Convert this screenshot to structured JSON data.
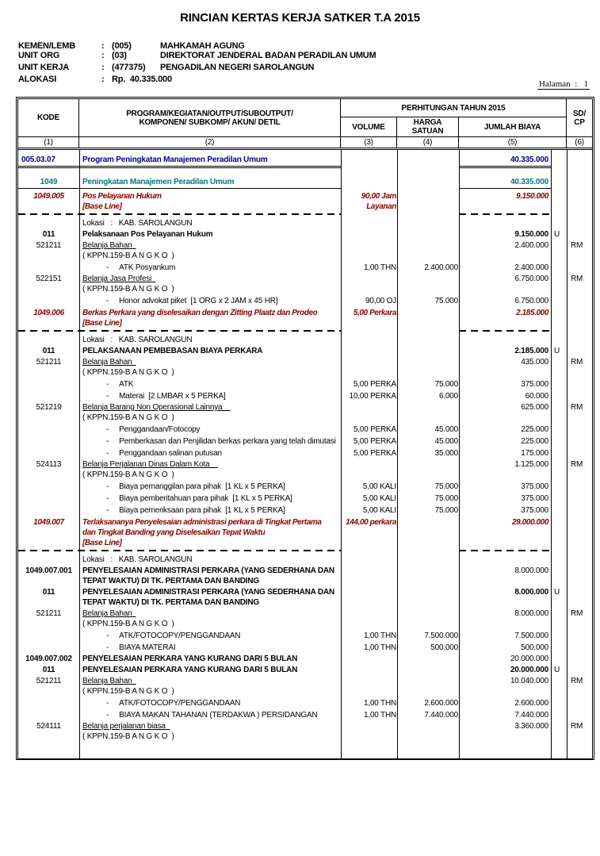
{
  "title": "RINCIAN KERTAS KERJA SATKER T.A 2015",
  "page_label": "Halaman  :   1",
  "colors": {
    "program_navy": "#00008B",
    "kegiatan_teal": "#007A7A",
    "baseline_red": "#8B0000"
  },
  "meta": {
    "rows": [
      {
        "label": "KEMEN/LEMB",
        "sep": ":",
        "code": "(005)",
        "name": "MAHKAMAH AGUNG"
      },
      {
        "label": "UNIT ORG",
        "sep": ":",
        "code": "(03)",
        "name": "DIREKTORAT JENDERAL BADAN PERADILAN UMUM"
      },
      {
        "label": "UNIT KERJA",
        "sep": ":",
        "code": "(477375)",
        "name": "PENGADILAN NEGERI SAROLANGUN"
      },
      {
        "label": "ALOKASI",
        "sep": ":",
        "code": "Rp.  40.335.000",
        "name": ""
      }
    ]
  },
  "table": {
    "detail_bullet": "-",
    "header": {
      "kode": "KODE",
      "program_line1": "PROGRAM/KEGIATAN/OUTPUT/SUBOUTPUT/",
      "program_line2": "KOMPONEN/ SUBKOMP/ AKUN/ DETIL",
      "perhitungan": "PERHITUNGAN TAHUN 2015",
      "volume": "VOLUME",
      "harga": "HARGA SATUAN",
      "jumlah": "JUMLAH BIAYA",
      "sdcp_line1": "SD/",
      "sdcp_line2": "CP",
      "nums": [
        "(1)",
        "(2)",
        "(3)",
        "(4)",
        "(5)",
        "(6)"
      ]
    },
    "rows": [
      {
        "t": "prog",
        "k": "005.03.07",
        "d": [
          "Program Peningkatan Manajemen Peradilan Umum"
        ],
        "j": "40.335.000"
      },
      {
        "t": "rule-double"
      },
      {
        "t": "keg",
        "k": "1049",
        "d": [
          "Peningkatan Manajemen Peradilan Umum"
        ],
        "j": "40.335.000"
      },
      {
        "t": "rule-single"
      },
      {
        "t": "out",
        "k": "1049.005",
        "d": [
          "Pos Pelayanan Hukum",
          "[Base Line]"
        ],
        "v": [
          "90,00 Jam",
          "Layanan"
        ],
        "j": "9.150.000"
      },
      {
        "t": "rule-dashed"
      },
      {
        "t": "lok",
        "d": [
          "Lokasi   :   KAB. SAROLANGUN"
        ]
      },
      {
        "t": "kom",
        "k": "011",
        "d": [
          "Pelaksanaan Pos Pelayanan Hukum"
        ],
        "j": "9.150.000",
        "u": "U"
      },
      {
        "t": "akun",
        "k": "521211",
        "d": [
          "Belanja Bahan  "
        ],
        "kppn": "( KPPN.159-B A N G K O  )",
        "j": "2.400.000",
        "s": "RM"
      },
      {
        "t": "det",
        "d": [
          "ATK Posyankum"
        ],
        "v": [
          "1,00 THN"
        ],
        "h": "2.400.000",
        "j": "2.400.000"
      },
      {
        "t": "akun",
        "k": "522151",
        "d": [
          "Belanja Jasa Profesi  "
        ],
        "kppn": "( KPPN.159-B A N G K O  )",
        "j": "6.750.000",
        "s": "RM"
      },
      {
        "t": "det",
        "d": [
          "Honor advokat piket  [1 ORG x 2 JAM x 45 HR]"
        ],
        "v": [
          "90,00 OJ"
        ],
        "h": "75.000",
        "j": "6.750.000"
      },
      {
        "t": "out",
        "k": "1049.006",
        "d": [
          "Berkas Perkara yang diselesaikan dengan Zitting Plaatz dan Prodeo",
          "[Base Line]"
        ],
        "v": [
          "5,00 Perkara"
        ],
        "j": "2.185.000"
      },
      {
        "t": "rule-dashed"
      },
      {
        "t": "lok",
        "d": [
          "Lokasi   :   KAB. SAROLANGUN"
        ]
      },
      {
        "t": "kom",
        "k": "011",
        "d": [
          "PELAKSANAAN PEMBEBASAN BIAYA PERKARA"
        ],
        "j": "2.185.000",
        "u": "U"
      },
      {
        "t": "akun",
        "k": "521211",
        "d": [
          "Belanja Bahan  "
        ],
        "kppn": "( KPPN.159-B A N G K O  )",
        "j": "435.000",
        "s": "RM"
      },
      {
        "t": "det",
        "d": [
          "ATK"
        ],
        "v": [
          "5,00 PERKA"
        ],
        "h": "75.000",
        "j": "375.000"
      },
      {
        "t": "det",
        "d": [
          "Materai  [2 LMBAR x 5 PERKA]"
        ],
        "v": [
          "10,00 PERKA"
        ],
        "h": "6.000",
        "j": "60.000"
      },
      {
        "t": "akun",
        "k": "521219",
        "d": [
          "Belanja Barang Non Operasional Lainnya    "
        ],
        "kppn": "( KPPN.159-B A N G K O  )",
        "j": "625.000",
        "s": "RM"
      },
      {
        "t": "det",
        "d": [
          "Penggandaan/Fotocopy"
        ],
        "v": [
          "5,00 PERKA"
        ],
        "h": "45.000",
        "j": "225.000"
      },
      {
        "t": "det",
        "d": [
          "Pemberkasan dan Penjilidan berkas perkara yang telah dimutasi"
        ],
        "v": [
          "5,00 PERKA"
        ],
        "h": "45.000",
        "j": "225.000"
      },
      {
        "t": "det",
        "d": [
          "Penggandaan salinan putusan"
        ],
        "v": [
          "5,00 PERKA"
        ],
        "h": "35.000",
        "j": "175.000"
      },
      {
        "t": "akun",
        "k": "524113",
        "d": [
          "Belanja Perjalanan Dinas Dalam Kota    "
        ],
        "kppn": "( KPPN.159-B A N G K O  )",
        "j": "1.125.000",
        "s": "RM"
      },
      {
        "t": "det",
        "d": [
          "Biaya pemanggilan para pihak  [1 KL x 5 PERKA]"
        ],
        "v": [
          "5,00 KALI"
        ],
        "h": "75.000",
        "j": "375.000"
      },
      {
        "t": "det",
        "d": [
          "Biaya pemberitahuan para pihak  [1 KL x 5 PERKA]"
        ],
        "v": [
          "5,00 KALI"
        ],
        "h": "75.000",
        "j": "375.000"
      },
      {
        "t": "det",
        "d": [
          "Biaya pemeriksaan para pihak  [1 KL x 5 PERKA]"
        ],
        "v": [
          "5,00 KALI"
        ],
        "h": "75.000",
        "j": "375.000"
      },
      {
        "t": "out",
        "k": "1049.007",
        "d": [
          "Terlaksananya Penyelesaian administrasi perkara di Tingkat Pertama",
          "dan Tingkat Banding yang Diselesaikan Tepat Waktu",
          "[Base Line]"
        ],
        "v": [
          "144,00 perkara"
        ],
        "j": "29.000.000"
      },
      {
        "t": "rule-dashed"
      },
      {
        "t": "lok",
        "d": [
          "Lokasi   :   KAB. SAROLANGUN"
        ]
      },
      {
        "t": "sub",
        "k": "1049.007.001",
        "d": [
          "PENYELESAIAN ADMINISTRASI PERKARA (YANG SEDERHANA DAN",
          "TEPAT WAKTU) DI TK. PERTAMA DAN BANDING"
        ],
        "j": "8.000.000"
      },
      {
        "t": "kom",
        "k": "011",
        "d": [
          "PENYELESAIAN ADMINISTRASI PERKARA (YANG SEDERHANA DAN",
          "TEPAT WAKTU) DI TK. PERTAMA DAN BANDING"
        ],
        "j": "8.000.000",
        "u": "U"
      },
      {
        "t": "akun",
        "k": "521211",
        "d": [
          "Belanja Bahan  "
        ],
        "kppn": "( KPPN.159-B A N G K O  )",
        "j": "8.000.000",
        "s": "RM"
      },
      {
        "t": "det",
        "d": [
          "ATK/FOTOCOPY/PENGGANDAAN"
        ],
        "v": [
          "1,00 THN"
        ],
        "h": "7.500.000",
        "j": "7.500.000"
      },
      {
        "t": "det",
        "d": [
          "BIAYA MATERAI"
        ],
        "v": [
          "1,00 THN"
        ],
        "h": "500.000",
        "j": "500.000"
      },
      {
        "t": "sub",
        "k": "1049.007.002",
        "d": [
          "PENYELESAIAN PERKARA YANG KURANG DARI 5 BULAN"
        ],
        "j": "20.000.000"
      },
      {
        "t": "kom",
        "k": "011",
        "d": [
          "PENYELESAIAN PERKARA YANG KURANG DARI 5 BULAN"
        ],
        "j": "20.000.000",
        "u": "U"
      },
      {
        "t": "akun",
        "k": "521211",
        "d": [
          "Belanja Bahan  "
        ],
        "kppn": "( KPPN.159-B A N G K O  )",
        "j": "10.040.000",
        "s": "RM"
      },
      {
        "t": "det",
        "d": [
          "ATK/FOTOCOPY/PENGGANDAAN"
        ],
        "v": [
          "1,00 THN"
        ],
        "h": "2.600.000",
        "j": "2.600.000"
      },
      {
        "t": "det",
        "d": [
          "BIAYA MAKAN TAHANAN (TERDAKWA ) PERSIDANGAN"
        ],
        "v": [
          "1,00 THN"
        ],
        "h": "7.440.000",
        "j": "7.440.000"
      },
      {
        "t": "akun",
        "k": "524111",
        "d": [
          "Belanja perjalanan biasa  "
        ],
        "kppn": "( KPPN.159-B A N G K O  )",
        "j": "3.360.000",
        "s": "RM"
      }
    ]
  }
}
